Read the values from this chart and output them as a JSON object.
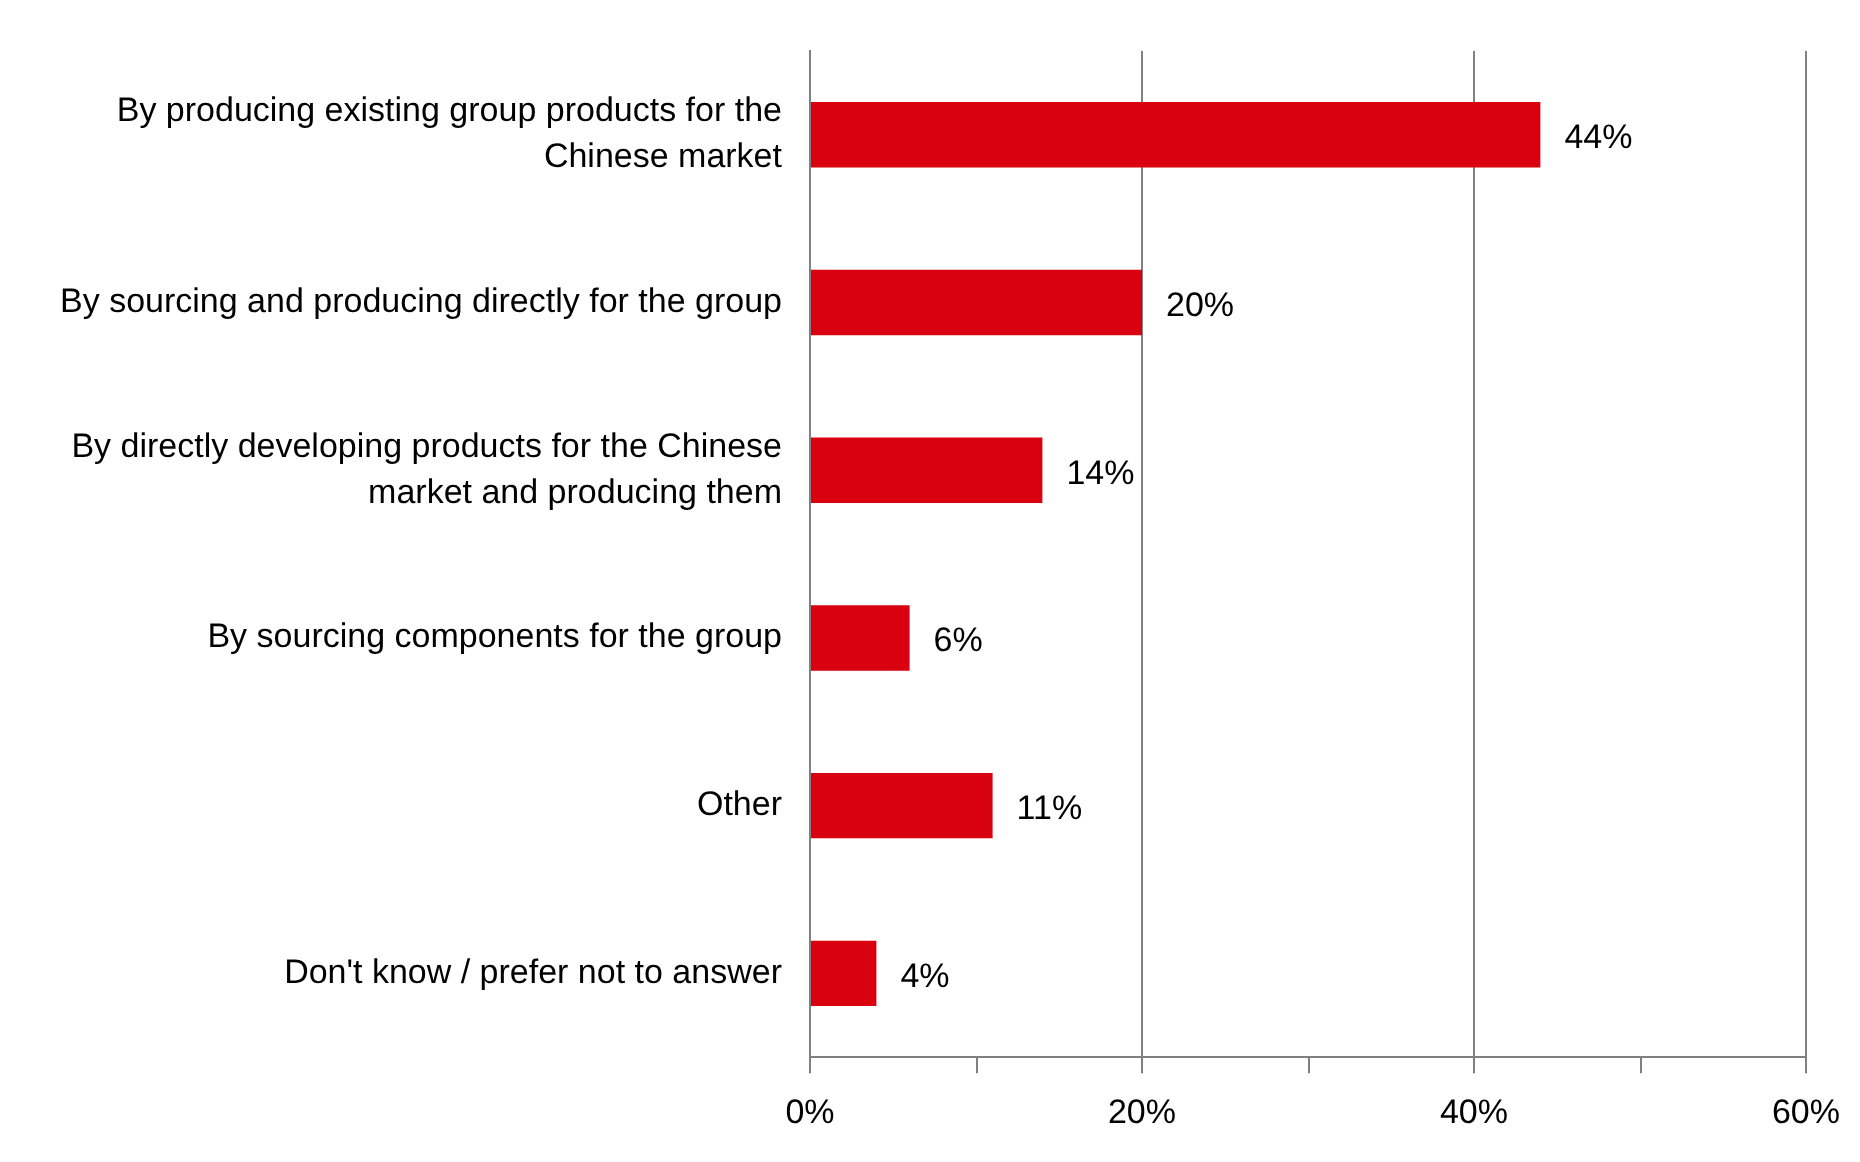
{
  "chart_data": {
    "type": "bar",
    "orientation": "horizontal",
    "categories": [
      "By producing existing group products for the Chinese market",
      "By sourcing and producing directly for the group",
      "By directly developing products for the Chinese market and producing them",
      "By sourcing components for the group",
      "Other",
      "Don't know / prefer not to answer"
    ],
    "values": [
      44,
      20,
      14,
      6,
      11,
      4
    ],
    "value_labels": [
      "44%",
      "20%",
      "14%",
      "6%",
      "11%",
      "4%"
    ],
    "color": "#d9000f",
    "xlim": [
      0,
      60
    ],
    "xticks": [
      {
        "value": 0,
        "label": "0%"
      },
      {
        "value": 10,
        "label": null
      },
      {
        "value": 20,
        "label": "20%"
      },
      {
        "value": 30,
        "label": null
      },
      {
        "value": 40,
        "label": "40%"
      },
      {
        "value": 50,
        "label": null
      },
      {
        "value": 60,
        "label": "60%"
      }
    ],
    "grid": "x",
    "legend": false
  }
}
